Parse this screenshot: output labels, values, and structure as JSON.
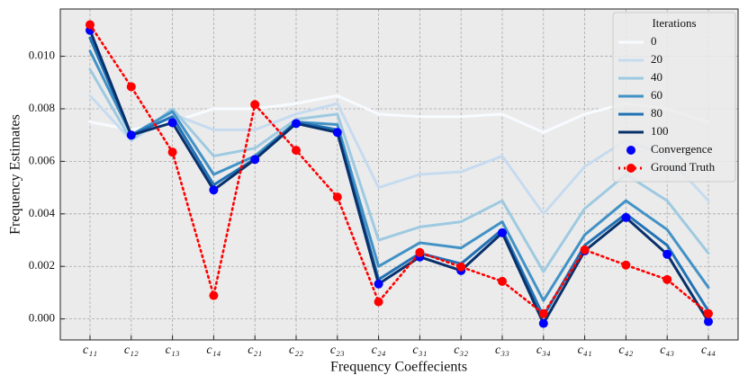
{
  "chart_data": {
    "type": "line",
    "xlabel": "Frequency Coeffecients",
    "ylabel": "Frequency Estimates",
    "categories": [
      "c₁₁",
      "c₁₂",
      "c₁₃",
      "c₁₄",
      "c₂₁",
      "c₂₂",
      "c₂₃",
      "c₂₄",
      "c₃₁",
      "c₃₂",
      "c₃₃",
      "c₃₄",
      "c₄₁",
      "c₄₂",
      "c₄₃",
      "c₄₄"
    ],
    "ylim": [
      -0.0008,
      0.0118
    ],
    "yticks": [
      {
        "value": 0,
        "label": "0.000"
      },
      {
        "value": 0.002,
        "label": "0.002"
      },
      {
        "value": 0.004,
        "label": "0.004"
      },
      {
        "value": 0.006,
        "label": "0.006"
      },
      {
        "value": 0.008,
        "label": "0.008"
      },
      {
        "value": 0.01,
        "label": "0.010"
      }
    ],
    "grid": true,
    "legend_title": "Iterations",
    "legend_loc": "upper right",
    "series": [
      {
        "name": "0",
        "color": "#f7fbff",
        "linestyle": "solid",
        "marker": false,
        "values": [
          0.0075,
          0.0072,
          0.0075,
          0.008,
          0.008,
          0.0082,
          0.0085,
          0.0078,
          0.0077,
          0.0077,
          0.0078,
          0.0071,
          0.0078,
          0.0082,
          0.008,
          0.0075
        ]
      },
      {
        "name": "20",
        "color": "#c6dbef",
        "linestyle": "solid",
        "marker": false,
        "values": [
          0.0085,
          0.0068,
          0.0078,
          0.0072,
          0.0072,
          0.0078,
          0.0082,
          0.005,
          0.0055,
          0.0056,
          0.0062,
          0.004,
          0.0058,
          0.0068,
          0.0062,
          0.0045
        ]
      },
      {
        "name": "40",
        "color": "#9ecae1",
        "linestyle": "solid",
        "marker": false,
        "values": [
          0.0095,
          0.0068,
          0.008,
          0.0062,
          0.0065,
          0.0076,
          0.0078,
          0.003,
          0.0035,
          0.0037,
          0.0045,
          0.0018,
          0.0042,
          0.0055,
          0.0045,
          0.0025
        ]
      },
      {
        "name": "60",
        "color": "#4292c6",
        "linestyle": "solid",
        "marker": false,
        "values": [
          0.0102,
          0.007,
          0.0079,
          0.0055,
          0.0062,
          0.0075,
          0.0074,
          0.002,
          0.0029,
          0.0027,
          0.0037,
          0.0007,
          0.0032,
          0.0045,
          0.0034,
          0.0012
        ]
      },
      {
        "name": "80",
        "color": "#2171b5",
        "linestyle": "solid",
        "marker": false,
        "values": [
          0.0107,
          0.007,
          0.0077,
          0.0051,
          0.0061,
          0.0075,
          0.0072,
          0.0015,
          0.0025,
          0.0021,
          0.0034,
          0.0001,
          0.0028,
          0.004,
          0.0028,
          0.0003
        ]
      },
      {
        "name": "100",
        "color": "#08306b",
        "linestyle": "solid",
        "marker": false,
        "values": [
          0.01099,
          0.007,
          0.00747,
          0.00491,
          0.00607,
          0.00744,
          0.0071,
          0.00133,
          0.00236,
          0.00184,
          0.00328,
          -0.00017,
          0.00259,
          0.00386,
          0.00246,
          -0.0001
        ]
      },
      {
        "name": "Convergence",
        "color": "#0000ff",
        "linestyle": "none",
        "marker": true,
        "values": [
          0.01099,
          0.007,
          0.00747,
          0.00491,
          0.00607,
          0.00744,
          0.0071,
          0.00133,
          0.00236,
          0.00184,
          0.00328,
          -0.00017,
          0.00259,
          0.00386,
          0.00246,
          -0.0001
        ]
      },
      {
        "name": "Ground Truth",
        "color": "#ff0000",
        "linestyle": "dotted",
        "marker": true,
        "values": [
          0.0112,
          0.00884,
          0.00635,
          0.00089,
          0.00816,
          0.00642,
          0.00464,
          0.00065,
          0.00253,
          0.00198,
          0.00143,
          0.0002,
          0.00263,
          0.00205,
          0.0015,
          0.0002
        ]
      }
    ]
  }
}
